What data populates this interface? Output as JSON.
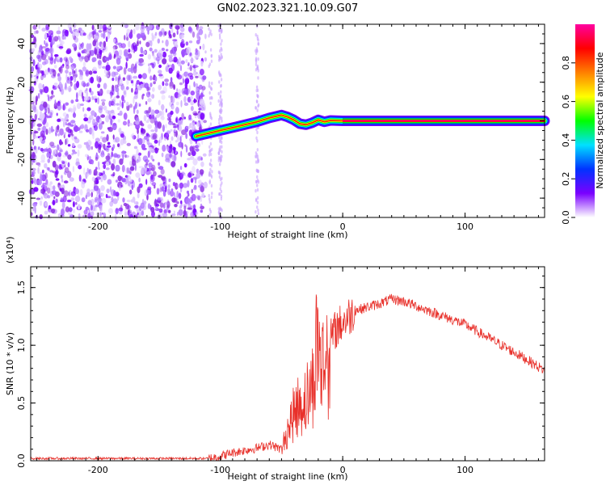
{
  "title": "GN02.2023.321.10.09.G07",
  "chart_data": [
    {
      "type": "heatmap",
      "xlabel": "Height of straight line (km)",
      "ylabel": "Frequency (Hz)",
      "xlim": [
        -255,
        165
      ],
      "ylim": [
        -50,
        50
      ],
      "xticks": [
        -200,
        -100,
        0,
        100
      ],
      "xtick_labels": [
        "-200",
        "-100",
        "0",
        "100"
      ],
      "yticks": [
        -40,
        -20,
        0,
        20,
        40
      ],
      "ytick_labels": [
        "-40",
        "-20",
        "0",
        "20",
        "40"
      ],
      "signal_track": {
        "x": [
          -120,
          -110,
          -100,
          -90,
          -80,
          -70,
          -60,
          -50,
          -45,
          -40,
          -35,
          -30,
          -25,
          -20,
          -15,
          -10,
          0,
          20,
          60,
          100,
          165
        ],
        "y": [
          -8,
          -6.5,
          -5,
          -3.5,
          -2,
          -0.5,
          1.5,
          3,
          2,
          0.5,
          -1.5,
          -2,
          -1,
          0.5,
          -0.5,
          0.2,
          0,
          0,
          0,
          0,
          0
        ]
      },
      "colorbar": {
        "label": "Normalized spectral amplitude",
        "range": [
          0,
          1
        ],
        "ticks": [
          0.0,
          0.2,
          0.4,
          0.6,
          0.8
        ],
        "tick_labels": [
          "0.0",
          "0.2",
          "0.4",
          "0.6",
          "0.8"
        ],
        "colors": [
          "#ffffff",
          "#7a00ff",
          "#0033ff",
          "#00e0ff",
          "#00ff00",
          "#ffff00",
          "#ff8000",
          "#ff0000",
          "#ff00a0"
        ]
      }
    },
    {
      "type": "line",
      "xlabel": "Height of straight line (km)",
      "ylabel": "SNR (10 * v/v)",
      "multiplier_label": "(x10⁴)",
      "xlim": [
        -255,
        165
      ],
      "ylim": [
        0,
        1.68
      ],
      "xticks": [
        -200,
        -100,
        0,
        100
      ],
      "xtick_labels": [
        "-200",
        "-100",
        "0",
        "100"
      ],
      "yticks": [
        0,
        0.5,
        1.0,
        1.5
      ],
      "ytick_labels": [
        "0.0",
        "0.5",
        "1.0",
        "1.5"
      ],
      "line_color": "#e8302a",
      "series": [
        {
          "x": [
            -255,
            -200,
            -150,
            -110,
            -100,
            -90,
            -80,
            -70,
            -60,
            -50,
            -45,
            -40,
            -35,
            -30,
            -25,
            -22,
            -20,
            -18,
            -15,
            -10,
            -5,
            0,
            5,
            10,
            20,
            30,
            40,
            50,
            60,
            70,
            80,
            90,
            100,
            110,
            120,
            130,
            140,
            150,
            165
          ],
          "y": [
            0.02,
            0.02,
            0.02,
            0.02,
            0.04,
            0.07,
            0.09,
            0.11,
            0.14,
            0.1,
            0.3,
            0.45,
            0.55,
            0.6,
            0.7,
            1.05,
            1.2,
            0.9,
            0.95,
            1.05,
            1.15,
            1.2,
            1.25,
            1.3,
            1.33,
            1.36,
            1.4,
            1.38,
            1.34,
            1.3,
            1.26,
            1.22,
            1.18,
            1.12,
            1.06,
            1.0,
            0.94,
            0.88,
            0.78
          ]
        }
      ]
    }
  ]
}
